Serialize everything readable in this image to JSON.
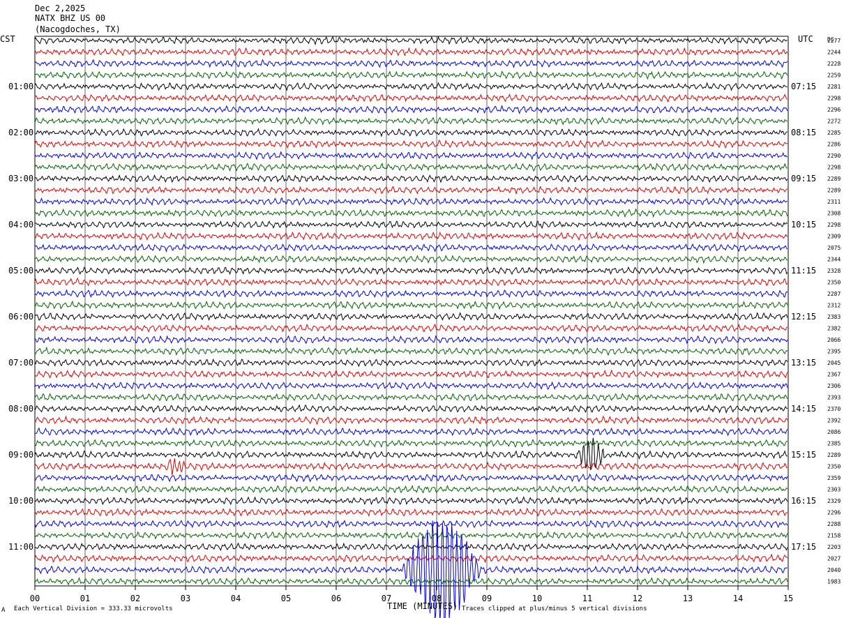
{
  "header": {
    "date": "Dec 2,2025",
    "station": "NATX BHZ US 00",
    "location": "(Nacogdoches, TX)"
  },
  "left_zone_label": "CST",
  "right_zone_label": "UTC",
  "dc_label": "DC",
  "footer": {
    "scale_note": "Each Vertical Division =  333.33 microvolts",
    "xlabel": "TIME (MINUTES)",
    "clip_note": "Traces clipped at plus/minus 5 vertical divisions",
    "corner_mark": "A"
  },
  "chart_data": {
    "type": "line",
    "x_range_minutes": [
      0,
      15
    ],
    "x_ticks": [
      "00",
      "01",
      "02",
      "03",
      "04",
      "05",
      "06",
      "07",
      "08",
      "09",
      "10",
      "11",
      "12",
      "13",
      "14",
      "15"
    ],
    "grid": "vertical lines at each minute",
    "trace_colors": [
      "#000000",
      "#e00000",
      "#0000e0",
      "#006400"
    ],
    "trace_count": 48,
    "trace_interval_minutes": 15,
    "left_hour_labels": [
      "01:00",
      "02:00",
      "03:00",
      "04:00",
      "05:00",
      "06:00",
      "07:00",
      "08:00",
      "09:00",
      "10:00",
      "11:00"
    ],
    "right_hour_labels": [
      "07:15",
      "08:15",
      "09:15",
      "10:15",
      "11:15",
      "12:15",
      "13:15",
      "14:15",
      "15:15",
      "16:15",
      "17:15"
    ],
    "hour_label_trace_index": [
      4,
      8,
      12,
      16,
      20,
      24,
      28,
      32,
      36,
      40,
      44
    ],
    "dc_offsets": [
      "2277",
      "2244",
      "2228",
      "2259",
      "2281",
      "2298",
      "2296",
      "2272",
      "2285",
      "2286",
      "2290",
      "2298",
      "2289",
      "2289",
      "2311",
      "2308",
      "2298",
      "2309",
      "2075",
      "2344",
      "2328",
      "2350",
      "2287",
      "2312",
      "2383",
      "2382",
      "2066",
      "2395",
      "2045",
      "2367",
      "2306",
      "2393",
      "2370",
      "2392",
      "2086",
      "2385",
      "2289",
      "2350",
      "2359",
      "2303",
      "2329",
      "2296",
      "2288",
      "2158",
      "2203",
      "2027",
      "2040",
      "1983"
    ],
    "events": [
      {
        "trace_index": 36,
        "start_min": 10.75,
        "end_min": 11.4,
        "amplitude_divisions": 1.5,
        "note": "burst on 09:00 CST trace"
      },
      {
        "trace_index": 37,
        "start_min": 2.6,
        "end_min": 3.0,
        "amplitude_divisions": 0.8,
        "note": "burst"
      },
      {
        "trace_index": 46,
        "start_min": 7.3,
        "end_min": 8.9,
        "amplitude_divisions": 5,
        "note": "large signal, clipped"
      }
    ]
  }
}
